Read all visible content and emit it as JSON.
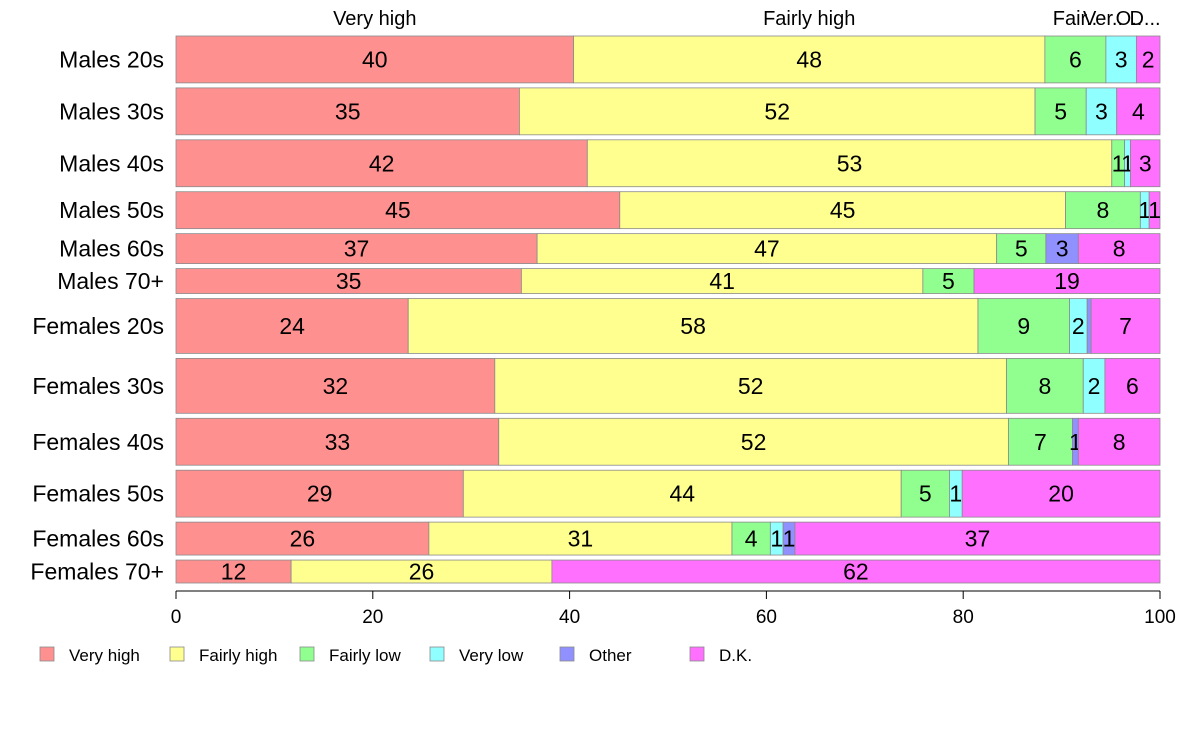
{
  "chart_data": {
    "type": "bar",
    "orientation": "horizontal",
    "stacked": true,
    "variable_width": true,
    "xlim": [
      0,
      100
    ],
    "x_ticks": [
      0,
      20,
      40,
      60,
      80,
      100
    ],
    "top_labels": [
      "Very high",
      "Fairly high",
      "Fair..",
      "Ver..",
      "O..",
      "D..."
    ],
    "categories": [
      "Males 20s",
      "Males 30s",
      "Males 40s",
      "Males 50s",
      "Males 60s",
      "Males 70+",
      "Females 20s",
      "Females 30s",
      "Females 40s",
      "Females 50s",
      "Females 60s",
      "Females 70+"
    ],
    "relative_bar_heights": [
      47,
      47,
      47,
      37,
      30,
      25,
      55,
      55,
      47,
      47,
      33,
      23
    ],
    "series": [
      {
        "name": "Very high",
        "color": "#FF9090",
        "values": [
          40.4,
          34.9,
          41.8,
          45.1,
          36.7,
          35.1,
          23.6,
          32.4,
          32.8,
          29.2,
          25.7,
          11.7
        ]
      },
      {
        "name": "Fairly high",
        "color": "#FFFF90",
        "values": [
          47.9,
          52.4,
          53.3,
          45.3,
          46.7,
          40.8,
          57.9,
          52.0,
          51.8,
          44.5,
          30.8,
          26.5
        ]
      },
      {
        "name": "Fairly low",
        "color": "#90FF90",
        "values": [
          6.2,
          5.2,
          1.3,
          7.6,
          5.0,
          5.2,
          9.3,
          7.8,
          6.5,
          4.9,
          3.9,
          0
        ]
      },
      {
        "name": "Very low",
        "color": "#90FFFF",
        "values": [
          3.1,
          3.1,
          0.6,
          0.9,
          0,
          0,
          1.8,
          2.2,
          0,
          1.3,
          1.3,
          0
        ]
      },
      {
        "name": "Other",
        "color": "#9090FF",
        "values": [
          0,
          0,
          0,
          0,
          3.3,
          0,
          0.4,
          0,
          0.6,
          0,
          1.2,
          0
        ]
      },
      {
        "name": "D.K.",
        "color": "#FF70FF",
        "values": [
          2.4,
          4.4,
          3.0,
          1.1,
          8.3,
          18.9,
          7.0,
          5.6,
          8.3,
          20.1,
          37.1,
          61.8
        ]
      }
    ],
    "labels": [
      [
        "40",
        "48",
        "6",
        "3",
        null,
        "2"
      ],
      [
        "35",
        "52",
        "5",
        "3",
        null,
        "4"
      ],
      [
        "42",
        "53",
        "1",
        "1",
        null,
        "3"
      ],
      [
        "45",
        "45",
        "8",
        "1",
        null,
        "1"
      ],
      [
        "37",
        "47",
        "5",
        null,
        "3",
        "8"
      ],
      [
        "35",
        "41",
        "5",
        null,
        null,
        "19"
      ],
      [
        "24",
        "58",
        "9",
        "2",
        null,
        "7"
      ],
      [
        "32",
        "52",
        "8",
        "2",
        null,
        "6"
      ],
      [
        "33",
        "52",
        "7",
        null,
        "1",
        "8"
      ],
      [
        "29",
        "44",
        "5",
        "1",
        null,
        "20"
      ],
      [
        "26",
        "31",
        "4",
        "1",
        "1",
        "37"
      ],
      [
        "12",
        "26",
        null,
        null,
        null,
        "62"
      ]
    ],
    "legend": {
      "position": "bottom",
      "entries": [
        "Very high",
        "Fairly high",
        "Fairly low",
        "Very low",
        "Other",
        "D.K."
      ]
    },
    "grid": false
  }
}
